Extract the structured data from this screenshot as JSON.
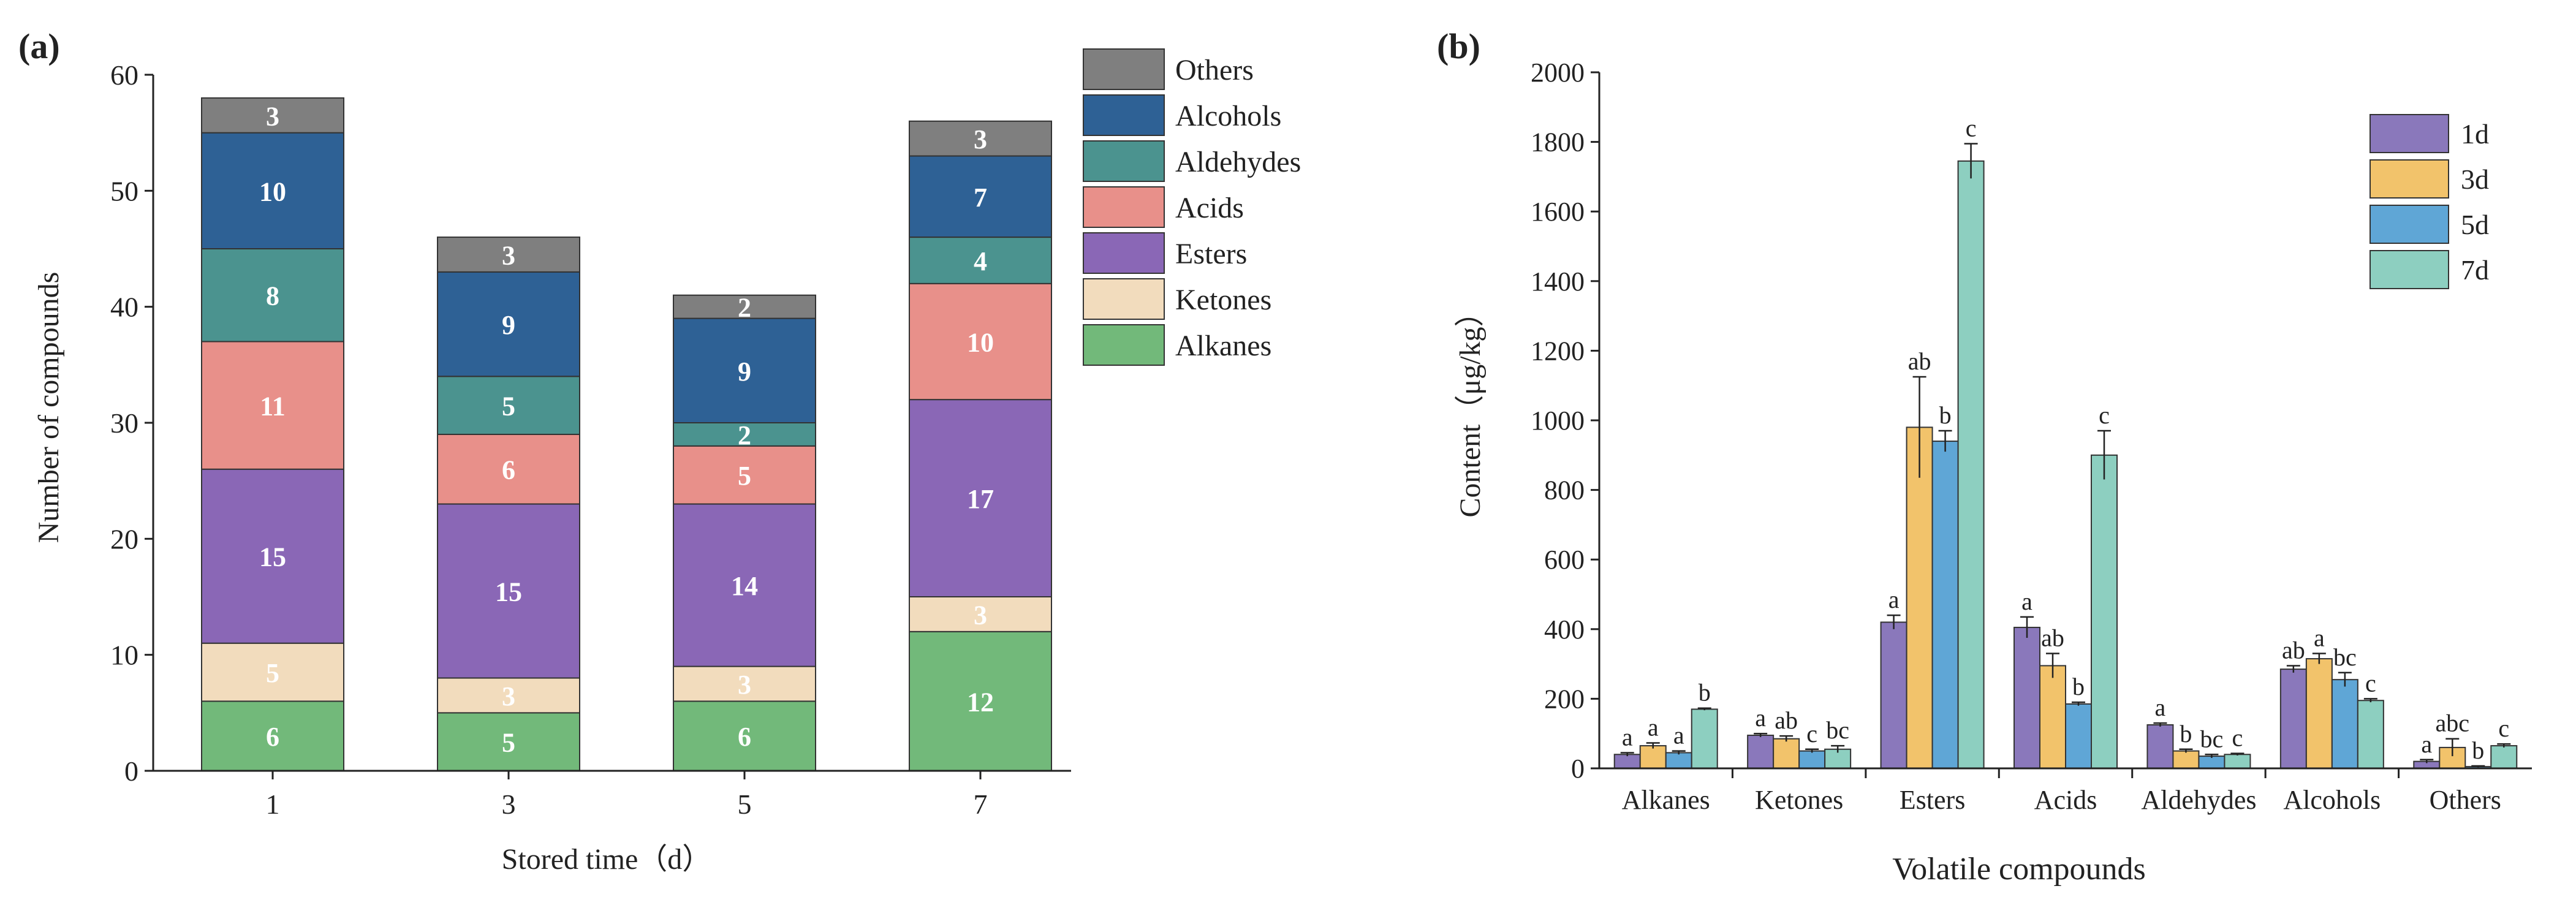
{
  "chart_data": [
    {
      "panel_label": "(a)",
      "type": "bar",
      "stacked": true,
      "xlabel": "Stored time（d）",
      "ylabel": "Number of compounds",
      "ylim": [
        0,
        60
      ],
      "yticks": [
        "0",
        "10",
        "20",
        "30",
        "40",
        "50",
        "60"
      ],
      "categories": [
        "1",
        "3",
        "5",
        "7"
      ],
      "legend_position": "top-right",
      "series": [
        {
          "name": "Alkanes",
          "color": "#72b97a",
          "values": [
            6,
            5,
            6,
            12
          ]
        },
        {
          "name": "Ketones",
          "color": "#f2dcbd",
          "values": [
            5,
            3,
            3,
            3
          ]
        },
        {
          "name": "Esters",
          "color": "#8a67b6",
          "values": [
            15,
            15,
            14,
            17
          ]
        },
        {
          "name": "Acids",
          "color": "#e8908a",
          "values": [
            11,
            6,
            5,
            10
          ]
        },
        {
          "name": "Aldehydes",
          "color": "#4b938f",
          "values": [
            8,
            5,
            2,
            4
          ]
        },
        {
          "name": "Alcohols",
          "color": "#2e6195",
          "values": [
            10,
            9,
            9,
            7
          ]
        },
        {
          "name": "Others",
          "color": "#7f7f7f",
          "values": [
            3,
            3,
            2,
            3
          ]
        }
      ]
    },
    {
      "panel_label": "(b)",
      "type": "bar",
      "grouped": true,
      "xlabel": "Volatile compounds",
      "ylabel": "Content（μg/kg）",
      "ylim": [
        0,
        2000
      ],
      "yticks": [
        "0",
        "200",
        "400",
        "600",
        "800",
        "1000",
        "1200",
        "1400",
        "1600",
        "1800",
        "2000"
      ],
      "categories": [
        "Alkanes",
        "Ketones",
        "Esters",
        "Acids",
        "Aldehydes",
        "Alcohols",
        "Others"
      ],
      "legend_position": "top-right",
      "series": [
        {
          "name": "1d",
          "color": "#8a78bb",
          "values": [
            40,
            95,
            420,
            405,
            125,
            285,
            20
          ],
          "errors": [
            5,
            5,
            20,
            30,
            5,
            10,
            5
          ],
          "letters": [
            "a",
            "a",
            "a",
            "a",
            "a",
            "ab",
            "a"
          ]
        },
        {
          "name": "3d",
          "color": "#f2c36b",
          "values": [
            65,
            85,
            980,
            295,
            50,
            315,
            60
          ],
          "errors": [
            8,
            8,
            145,
            35,
            5,
            15,
            25
          ],
          "letters": [
            "a",
            "ab",
            "ab",
            "ab",
            "b",
            "a",
            "abc"
          ]
        },
        {
          "name": "5d",
          "color": "#5fa6d6",
          "values": [
            45,
            50,
            940,
            185,
            35,
            255,
            5
          ],
          "errors": [
            5,
            5,
            30,
            5,
            5,
            20,
            2
          ],
          "letters": [
            "a",
            "c",
            "b",
            "b",
            "bc",
            "bc",
            "b"
          ]
        },
        {
          "name": "7d",
          "color": "#8dcfc0",
          "values": [
            170,
            55,
            1745,
            900,
            40,
            195,
            65
          ],
          "errors": [
            3,
            10,
            50,
            70,
            3,
            5,
            5
          ],
          "letters": [
            "b",
            "bc",
            "c",
            "c",
            "c",
            "c",
            "c"
          ]
        }
      ]
    }
  ]
}
